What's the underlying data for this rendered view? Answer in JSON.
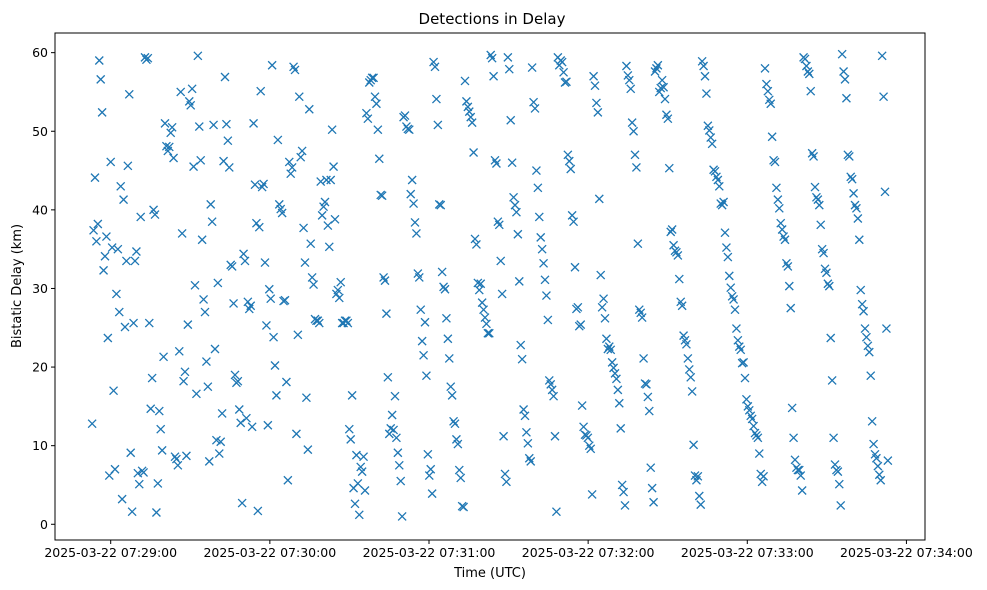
{
  "chart_data": {
    "type": "scatter",
    "title": "Detections in Delay",
    "xlabel": "Time (UTC)",
    "ylabel": "Bistatic Delay (km)",
    "x_start": "2025-03-22 07:28:53",
    "x_end": "2025-03-22 07:33:53",
    "xlim": [
      "2025-03-22 07:28:39",
      "2025-03-22 07:34:07"
    ],
    "ylim": [
      -2,
      62.5
    ],
    "x_ticks": [
      "2025-03-22 07:29:00",
      "2025-03-22 07:30:00",
      "2025-03-22 07:31:00",
      "2025-03-22 07:32:00",
      "2025-03-22 07:33:00",
      "2025-03-22 07:34:00"
    ],
    "y_ticks": [
      0,
      10,
      20,
      30,
      40,
      50,
      60
    ],
    "grid": false,
    "legend": "none",
    "marker": "x",
    "marker_color": "#1f77b4",
    "series": [
      {
        "delays_km": [
          12.8,
          37.4,
          44.1,
          36.0,
          38.2,
          59.0,
          56.6,
          52.4,
          32.3,
          34.1,
          36.6,
          23.7,
          6.2,
          46.1,
          35.2,
          17.0,
          7.0,
          29.3,
          35.0,
          27.0,
          43.0,
          3.2,
          41.3,
          25.1,
          33.5,
          45.6,
          54.7,
          9.1,
          1.6,
          25.6,
          33.5,
          34.7,
          6.5,
          5.1,
          39.1,
          6.8,
          6.6,
          59.4,
          59.1,
          59.3,
          25.6,
          14.7,
          18.6,
          40.0,
          39.4,
          1.5,
          5.2,
          14.4,
          12.1,
          9.4,
          21.3,
          51.0,
          48.1,
          47.5,
          48.0,
          49.8,
          50.5,
          46.6,
          8.6,
          8.3,
          7.5,
          22.0,
          55.0,
          37.0,
          18.2,
          19.4,
          8.7,
          25.4,
          53.8,
          53.3,
          55.4,
          45.5,
          30.4,
          16.6,
          59.6,
          50.6,
          46.3,
          36.2,
          28.6,
          27.0,
          20.7,
          17.5,
          8.0,
          40.7,
          38.5,
          50.8,
          22.3,
          10.7,
          30.7,
          9.0,
          10.5,
          14.1,
          46.2,
          56.9,
          50.9,
          48.8,
          45.4,
          33.0,
          32.8,
          28.1,
          19.0,
          18.0,
          18.2,
          14.6,
          12.9,
          2.7,
          34.4,
          33.5,
          13.5,
          28.3,
          27.4,
          27.8,
          12.4,
          51.0,
          43.2,
          38.3,
          1.7,
          37.8,
          55.1,
          42.9,
          43.3,
          33.3,
          25.3,
          12.6,
          29.9,
          28.7,
          58.4,
          23.8,
          20.2,
          16.4,
          48.9,
          40.7,
          40.1,
          39.6,
          28.4,
          28.5,
          18.1,
          5.6,
          46.1,
          44.6,
          45.4,
          58.2,
          57.8,
          11.5,
          24.1,
          54.4,
          46.7,
          47.5,
          37.7,
          33.3,
          16.1,
          9.5,
          52.8,
          35.7,
          31.4,
          30.5,
          26.1,
          25.9,
          25.9,
          25.6,
          43.6,
          39.3,
          40.4,
          41.0,
          43.8,
          38.0,
          35.3,
          43.8,
          50.2,
          45.5,
          38.8,
          29.3,
          29.8,
          28.8,
          30.8,
          25.6,
          25.6,
          25.9,
          25.9,
          25.6,
          12.1,
          10.8,
          16.4,
          4.6,
          2.6,
          8.8,
          5.2,
          1.2,
          7.3,
          6.7,
          8.6,
          4.3,
          52.3,
          51.6,
          56.2,
          56.5,
          56.8,
          56.8,
          54.4,
          53.5,
          50.2,
          46.5,
          41.9,
          41.8,
          31.4,
          31.0,
          26.8,
          18.7,
          11.5,
          12.2,
          13.9,
          12.0,
          16.3,
          11.0,
          9.1,
          7.5,
          5.5,
          1.0,
          51.8,
          52.0,
          50.6,
          50.3,
          50.2,
          42.0,
          43.8,
          40.8,
          38.4,
          37.0,
          31.9,
          31.4,
          27.3,
          23.3,
          21.5,
          25.7,
          18.9,
          8.9,
          6.2,
          7.0,
          3.9,
          58.8,
          58.2,
          54.1,
          50.8,
          40.7,
          40.6,
          32.1,
          30.2,
          29.9,
          26.2,
          23.6,
          21.1,
          17.5,
          16.4,
          13.1,
          12.8,
          10.8,
          10.2,
          6.9,
          5.9,
          2.3,
          2.2,
          56.4,
          53.8,
          53.1,
          52.5,
          51.8,
          51.1,
          47.3,
          36.3,
          35.6,
          30.7,
          29.8,
          30.6,
          28.2,
          27.3,
          26.3,
          25.5,
          24.3,
          24.3,
          59.7,
          59.3,
          57.0,
          46.3,
          45.9,
          38.5,
          38.1,
          33.5,
          29.3,
          11.2,
          6.4,
          5.4,
          59.4,
          57.9,
          51.4,
          46.0,
          41.6,
          40.6,
          39.7,
          36.9,
          30.9,
          22.8,
          21.0,
          14.6,
          13.8,
          11.7,
          10.3,
          8.4,
          8.0,
          58.1,
          53.7,
          52.9,
          45.0,
          42.8,
          39.1,
          36.5,
          35.0,
          33.2,
          31.1,
          29.1,
          26.0,
          18.3,
          17.8,
          17.1,
          16.3,
          11.2,
          1.6,
          59.4,
          58.4,
          59.0,
          58.8,
          57.5,
          56.2,
          56.3,
          47.0,
          46.2,
          45.2,
          39.3,
          38.5,
          32.7,
          27.4,
          27.6,
          25.2,
          25.4,
          15.1,
          12.4,
          11.4,
          11.3,
          11.0,
          10.0,
          9.6,
          3.8,
          57.0,
          55.8,
          53.6,
          52.4,
          41.4,
          31.7,
          27.6,
          28.7,
          26.2,
          23.6,
          22.3,
          22.6,
          22.2,
          20.6,
          19.9,
          19.2,
          18.5,
          17.1,
          15.4,
          12.2,
          5.0,
          4.1,
          2.4,
          58.3,
          57.1,
          56.5,
          55.4,
          51.1,
          50.0,
          47.0,
          45.4,
          35.7,
          27.3,
          26.9,
          26.3,
          21.1,
          17.9,
          17.8,
          16.2,
          14.4,
          7.2,
          4.6,
          2.8,
          57.6,
          58.0,
          58.4,
          55.0,
          55.5,
          56.5,
          55.6,
          54.1,
          52.1,
          51.6,
          45.3,
          37.2,
          37.5,
          35.5,
          34.8,
          34.6,
          34.2,
          31.2,
          28.3,
          27.8,
          24.0,
          23.4,
          22.9,
          21.1,
          19.7,
          18.7,
          16.9,
          10.1,
          6.2,
          5.6,
          6.1,
          3.6,
          2.5,
          58.9,
          58.3,
          57.0,
          54.8,
          50.7,
          50.1,
          49.2,
          48.4,
          45.1,
          44.9,
          44.2,
          43.8,
          43.0,
          40.8,
          40.6,
          41.0,
          37.1,
          35.2,
          34.0,
          31.6,
          30.1,
          29.0,
          28.6,
          27.3,
          24.9,
          23.4,
          22.6,
          22.2,
          20.5,
          20.6,
          18.6,
          15.9,
          15.0,
          14.5,
          13.8,
          13.4,
          12.5,
          11.6,
          11.3,
          11.0,
          9.0,
          6.4,
          5.4,
          6.1,
          58.0,
          56.0,
          55.1,
          54.0,
          53.5,
          49.3,
          46.3,
          46.1,
          42.8,
          41.3,
          40.2,
          38.3,
          37.5,
          36.6,
          36.2,
          33.2,
          32.8,
          30.3,
          27.5,
          14.8,
          11.0,
          8.2,
          7.2,
          6.9,
          6.9,
          6.2,
          4.3,
          59.4,
          59.2,
          58.3,
          57.6,
          57.3,
          55.1,
          47.2,
          46.8,
          42.9,
          41.6,
          41.3,
          40.6,
          38.1,
          35.0,
          34.5,
          32.5,
          32.0,
          30.6,
          30.3,
          23.7,
          18.3,
          11.0,
          7.6,
          6.9,
          6.7,
          5.1,
          2.4,
          59.8,
          57.6,
          56.6,
          54.2,
          47.0,
          46.8,
          44.2,
          43.9,
          42.1,
          40.6,
          40.2,
          38.9,
          36.2,
          29.8,
          28.0,
          27.1,
          24.9,
          23.8,
          22.7,
          21.9,
          18.9,
          13.1,
          10.2,
          8.9,
          8.4,
          7.4,
          6.3,
          5.6,
          59.6,
          54.4,
          42.3,
          24.9,
          8.1
        ]
      }
    ]
  }
}
